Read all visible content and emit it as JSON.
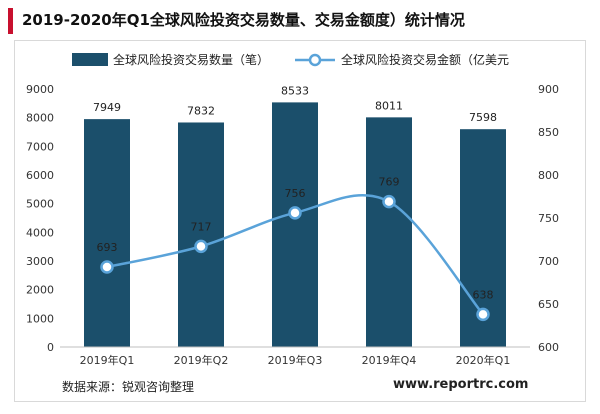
{
  "page": {
    "title": "2019-2020年Q1全球风险投资交易数量、交易金额度）统计情况",
    "source": "数据来源：锐观咨询整理",
    "website": "www.reportrc.com"
  },
  "colors": {
    "bar": "#1b4f6b",
    "line": "#5aa3d9",
    "accent": "#c8102e",
    "grid": "#d9d9d9"
  },
  "chart_data": {
    "type": "bar",
    "categories": [
      "2019年Q1",
      "2019年Q2",
      "2019年Q3",
      "2019年Q4",
      "2020年Q1"
    ],
    "series": [
      {
        "name": "全球风险投资交易数量（笔）",
        "type": "bar",
        "axis": "left",
        "values": [
          7949,
          7832,
          8533,
          8011,
          7598
        ]
      },
      {
        "name": "全球风险投资交易金额（亿美元",
        "type": "line",
        "axis": "right",
        "values": [
          693,
          717,
          756,
          769,
          638
        ]
      }
    ],
    "y_left": {
      "min": 0,
      "max": 9000,
      "step": 1000,
      "ticks": [
        "0",
        "1000",
        "2000",
        "3000",
        "4000",
        "5000",
        "6000",
        "7000",
        "8000",
        "9000"
      ]
    },
    "y_right": {
      "min": 600,
      "max": 900,
      "step": 50,
      "ticks": [
        "600",
        "650",
        "700",
        "750",
        "800",
        "850",
        "900"
      ]
    },
    "legend": "top"
  }
}
